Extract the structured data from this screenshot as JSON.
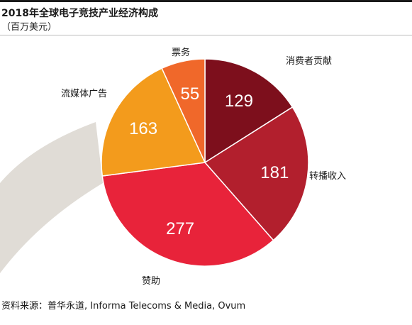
{
  "header": {
    "title": "2018年全球电子竞技产业经济构成",
    "subtitle": "（百万美元）"
  },
  "footer": {
    "source": "资料来源：普华永道, Informa Telecoms & Media, Ovum"
  },
  "chart_data": {
    "type": "pie",
    "title": "2018年全球电子竞技产业经济构成",
    "subtitle": "（百万美元）",
    "unit": "百万美元",
    "start": "12 o'clock, clockwise",
    "slices": [
      {
        "label": "消费者贡献",
        "value": 129,
        "color": "#7d0f1c"
      },
      {
        "label": "转播收入",
        "value": 181,
        "color": "#b21f2d"
      },
      {
        "label": "赞助",
        "value": 277,
        "color": "#e8233a"
      },
      {
        "label": "流媒体广告",
        "value": 163,
        "color": "#f39b1c"
      },
      {
        "label": "票务",
        "value": 55,
        "color": "#f0682a"
      }
    ],
    "decoration_color": "#e0dcd6"
  }
}
